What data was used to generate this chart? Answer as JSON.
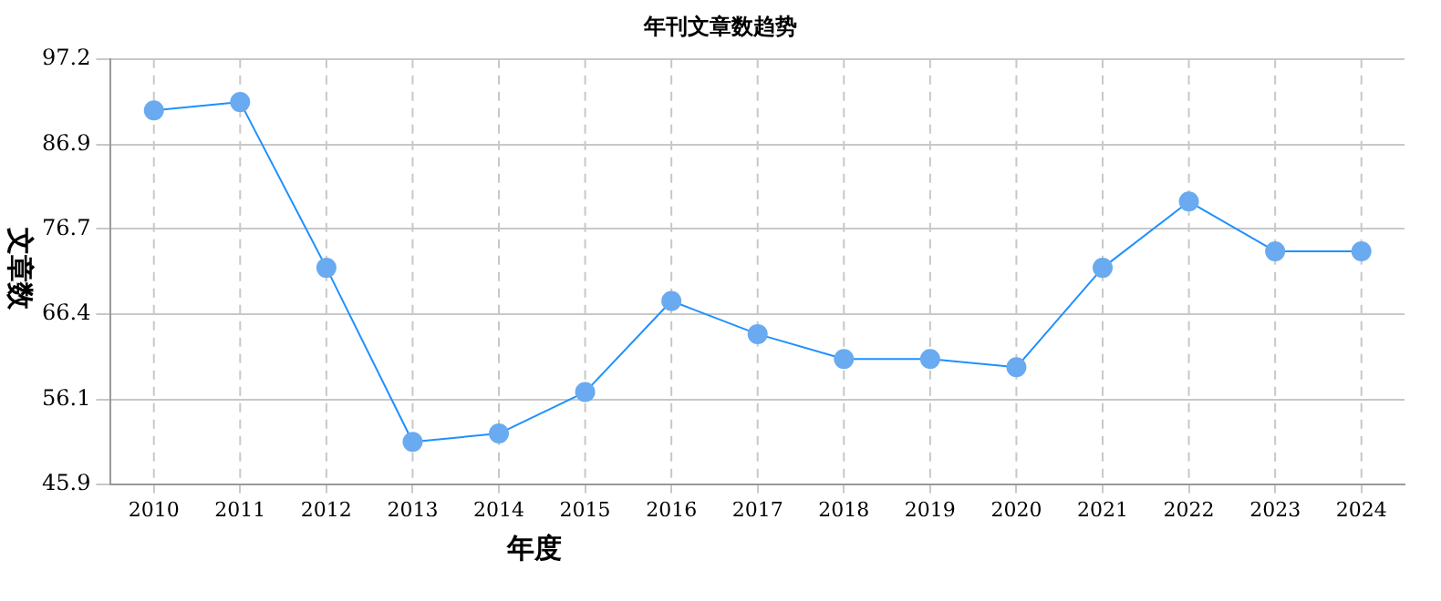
{
  "chart_data": {
    "type": "line",
    "title": "年刊文章数趋势",
    "xlabel": "年度",
    "ylabel": "文章数",
    "categories": [
      "2010",
      "2011",
      "2012",
      "2013",
      "2014",
      "2015",
      "2016",
      "2017",
      "2018",
      "2019",
      "2020",
      "2021",
      "2022",
      "2023",
      "2024"
    ],
    "series": [
      {
        "color": "#1e90ff",
        "values": [
          91,
          92,
          72,
          51,
          52,
          57,
          68,
          64,
          61,
          61,
          60,
          72,
          80,
          74,
          74
        ]
      }
    ],
    "ylim": [
      45.9,
      97.2
    ],
    "yticks": [
      45.9,
      56.1,
      66.4,
      76.7,
      86.9,
      97.2
    ],
    "grid": true,
    "marker": "circle",
    "line_style": "solid",
    "legend": false
  }
}
